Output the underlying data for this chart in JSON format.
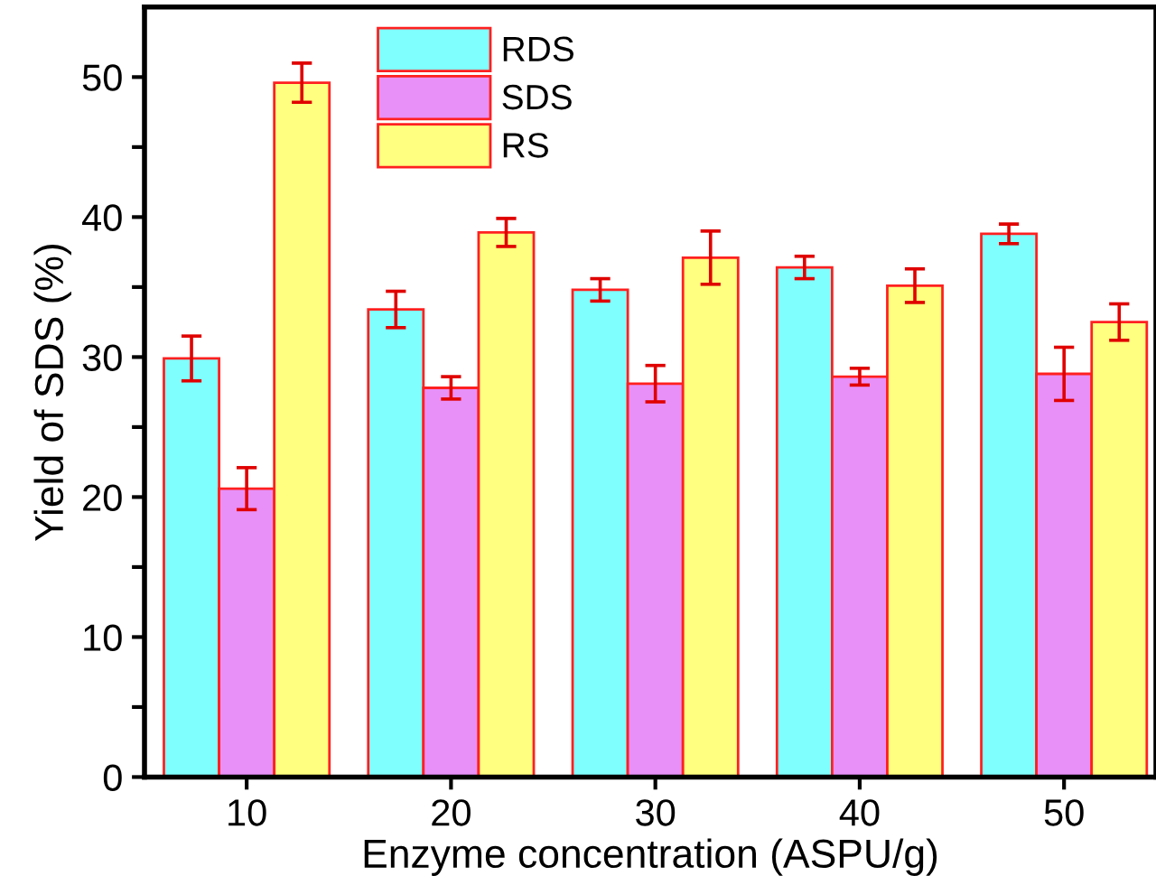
{
  "chart_data": {
    "type": "bar",
    "xlabel": "Enzyme concentration (ASPU/g)",
    "ylabel": "Yield of SDS (%)",
    "categories": [
      "10",
      "20",
      "30",
      "40",
      "50"
    ],
    "series": [
      {
        "name": "RDS",
        "color": "#80ffff",
        "values": [
          29.9,
          33.4,
          34.8,
          36.4,
          38.8
        ],
        "errors": [
          1.6,
          1.3,
          0.8,
          0.8,
          0.7
        ]
      },
      {
        "name": "SDS",
        "color": "#e890f8",
        "values": [
          20.6,
          27.8,
          28.1,
          28.6,
          28.8
        ],
        "errors": [
          1.5,
          0.8,
          1.3,
          0.6,
          1.9
        ]
      },
      {
        "name": "RS",
        "color": "#ffff80",
        "values": [
          49.6,
          38.9,
          37.1,
          35.1,
          32.5
        ],
        "errors": [
          1.4,
          1.0,
          1.9,
          1.2,
          1.3
        ]
      }
    ],
    "ylim": [
      0,
      55
    ],
    "yticks": [
      0,
      {
        "value": 5,
        "label": null
      },
      10,
      {
        "value": 15,
        "label": null
      },
      20,
      {
        "value": 25,
        "label": null
      },
      30,
      {
        "value": 35,
        "label": null
      },
      40,
      {
        "value": 45,
        "label": null
      },
      50
    ],
    "legend": "top left",
    "grid": false
  }
}
